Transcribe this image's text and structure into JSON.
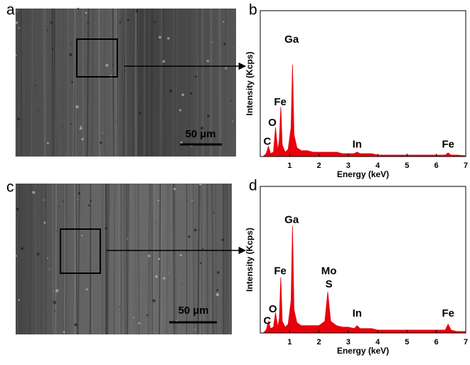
{
  "images": [
    {
      "panel_label": "a",
      "scale_bar": "50 µm"
    },
    {
      "panel_label": "c",
      "scale_bar": "50 µm"
    }
  ],
  "chart_data": [
    {
      "type": "area",
      "panel_label": "b",
      "x_label": "Energy (keV)",
      "y_label": "Intensity (Kcps)",
      "color": "#e8000b",
      "xlim": [
        0,
        7
      ],
      "xticks": [
        1,
        2,
        3,
        4,
        5,
        6,
        7
      ],
      "ylim": [
        0,
        100
      ],
      "x": [
        0.1,
        0.2,
        0.28,
        0.35,
        0.45,
        0.52,
        0.6,
        0.65,
        0.7,
        0.75,
        0.85,
        0.95,
        1.05,
        1.1,
        1.15,
        1.25,
        1.4,
        1.6,
        1.8,
        2.0,
        2.2,
        2.3,
        2.4,
        2.6,
        2.8,
        3.0,
        3.2,
        3.3,
        3.4,
        3.6,
        3.8,
        4.0,
        4.5,
        5.0,
        5.5,
        6.0,
        6.3,
        6.4,
        6.5,
        6.7,
        7.0
      ],
      "values": [
        0,
        2,
        7,
        2,
        3,
        20,
        4,
        12,
        34,
        8,
        3,
        5,
        20,
        63,
        15,
        6,
        4,
        4,
        3,
        3,
        3,
        3,
        3,
        3,
        2,
        2,
        2,
        3,
        2,
        2,
        2,
        1,
        1,
        1,
        1,
        1,
        1,
        2.5,
        1,
        1,
        0.5
      ],
      "annotations": [
        {
          "text": "C",
          "x": 0.24,
          "y": 10
        },
        {
          "text": "O",
          "x": 0.41,
          "y": 23
        },
        {
          "text": "Fe",
          "x": 0.68,
          "y": 37
        },
        {
          "text": "Ga",
          "x": 1.07,
          "y": 80
        },
        {
          "text": "In",
          "x": 3.3,
          "y": 8
        },
        {
          "text": "Fe",
          "x": 6.4,
          "y": 8
        }
      ]
    },
    {
      "type": "area",
      "panel_label": "d",
      "x_label": "Energy (keV)",
      "y_label": "Intensity (Kcps)",
      "color": "#e8000b",
      "xlim": [
        0,
        7
      ],
      "xticks": [
        1,
        2,
        3,
        4,
        5,
        6,
        7
      ],
      "ylim": [
        0,
        100
      ],
      "x": [
        0.1,
        0.2,
        0.28,
        0.35,
        0.45,
        0.52,
        0.6,
        0.65,
        0.7,
        0.75,
        0.85,
        0.95,
        1.05,
        1.1,
        1.15,
        1.25,
        1.4,
        1.6,
        1.8,
        2.0,
        2.2,
        2.3,
        2.4,
        2.6,
        2.8,
        3.0,
        3.2,
        3.3,
        3.4,
        3.6,
        3.8,
        4.0,
        4.5,
        5.0,
        5.5,
        6.0,
        6.3,
        6.4,
        6.5,
        6.7,
        7.0
      ],
      "values": [
        0,
        2,
        8,
        3,
        4,
        14,
        4,
        10,
        38,
        8,
        4,
        6,
        22,
        73,
        16,
        7,
        5,
        5,
        5,
        5,
        8,
        28,
        8,
        5,
        4,
        4,
        3,
        5,
        3,
        3,
        3,
        2,
        2,
        2,
        2,
        2,
        2,
        6,
        2,
        1,
        1
      ],
      "annotations": [
        {
          "text": "C",
          "x": 0.24,
          "y": 8
        },
        {
          "text": "O",
          "x": 0.43,
          "y": 16
        },
        {
          "text": "Fe",
          "x": 0.68,
          "y": 42
        },
        {
          "text": "Ga",
          "x": 1.07,
          "y": 77
        },
        {
          "text": "Mo",
          "x": 2.34,
          "y": 42
        },
        {
          "text": "S",
          "x": 2.34,
          "y": 33
        },
        {
          "text": "In",
          "x": 3.3,
          "y": 13
        },
        {
          "text": "Fe",
          "x": 6.4,
          "y": 13
        }
      ]
    }
  ]
}
